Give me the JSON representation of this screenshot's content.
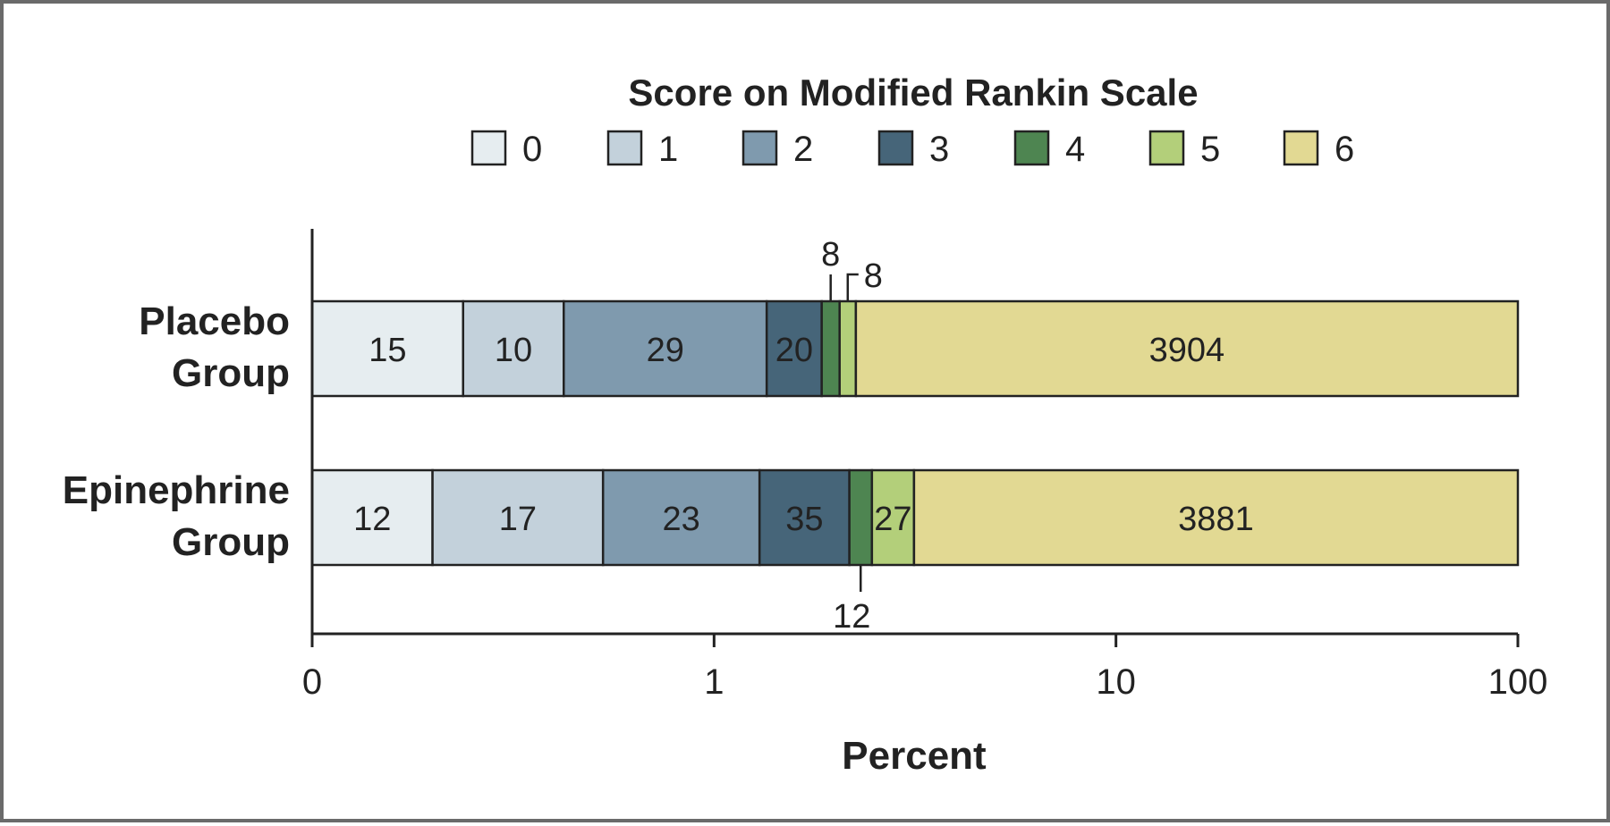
{
  "chart_data": {
    "type": "bar",
    "orientation": "horizontal",
    "stacked": true,
    "title": "",
    "legend_title": "Score on Modified Rankin Scale",
    "legend_placement": "top",
    "xlabel": "Percent",
    "ylabel": "",
    "x_scale": "log",
    "x_ticks": [
      "0",
      "1",
      "10",
      "100"
    ],
    "categories": [
      "Placebo Group",
      "Epinephrine Group"
    ],
    "category_lines": [
      [
        "Placebo",
        "Group"
      ],
      [
        "Epinephrine",
        "Group"
      ]
    ],
    "series": [
      {
        "name": "0",
        "color": "#e6edf0",
        "values": [
          15,
          12
        ]
      },
      {
        "name": "1",
        "color": "#c3d1db",
        "values": [
          10,
          17
        ]
      },
      {
        "name": "2",
        "color": "#7f9aae",
        "values": [
          29,
          23
        ]
      },
      {
        "name": "3",
        "color": "#466579",
        "values": [
          20,
          35
        ]
      },
      {
        "name": "4",
        "color": "#4e8551",
        "values": [
          8,
          12
        ]
      },
      {
        "name": "5",
        "color": "#b3cf7a",
        "values": [
          8,
          27
        ]
      },
      {
        "name": "6",
        "color": "#e2d993",
        "values": [
          3904,
          3881
        ]
      }
    ],
    "segment_labels": [
      [
        "15",
        "10",
        "29",
        "20",
        "8",
        "8",
        "3904"
      ],
      [
        "12",
        "17",
        "23",
        "35",
        "12",
        "27",
        "3881"
      ]
    ],
    "grid": false
  }
}
